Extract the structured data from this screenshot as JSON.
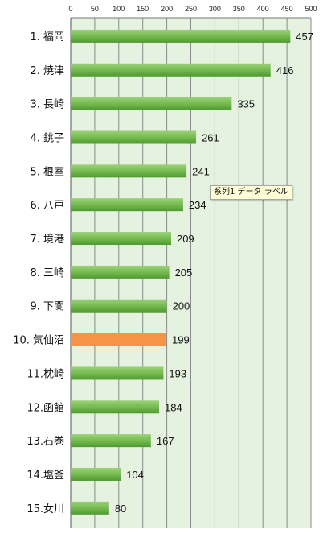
{
  "chart_data": {
    "type": "bar",
    "orientation": "horizontal",
    "categories": [
      "1. 福岡",
      "2. 焼津",
      "3. 長崎",
      "4. 銚子",
      "5. 根室",
      "6. 八戸",
      "7. 境港",
      "8. 三崎",
      "9. 下関",
      "10. 気仙沼",
      "11.枕崎",
      "12.函館",
      "13.石巻",
      "14.塩釜",
      "15.女川"
    ],
    "series": [
      {
        "values": [
          457,
          416,
          335,
          261,
          241,
          234,
          209,
          205,
          200,
          199,
          193,
          184,
          167,
          104,
          80
        ]
      }
    ],
    "x_ticks": [
      "0",
      "50",
      "100",
      "150",
      "200",
      "250",
      "300",
      "350",
      "400",
      "450",
      "500"
    ],
    "xlim": [
      0,
      500
    ],
    "x_axis_position": "top",
    "grid": true,
    "legend": "none",
    "highlight_index": 9,
    "colors": {
      "bar": "#76bb4f",
      "bar_dark": "#4f9a32",
      "bar_light": "#9bd17a",
      "highlight": "#f59446",
      "plot_background": "#e5f2e0",
      "grid": "#8a8a8a"
    }
  },
  "tooltip": {
    "text": "系列1 データ ラベル"
  }
}
